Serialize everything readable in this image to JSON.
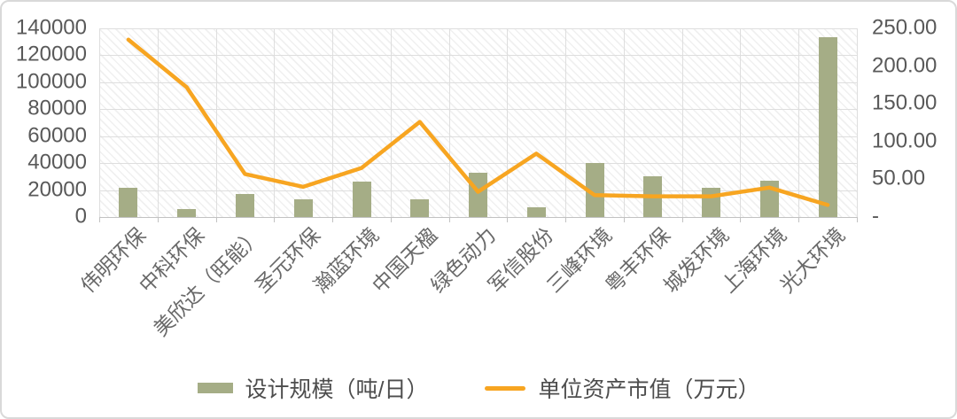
{
  "colors": {
    "bar": "#a5ad86",
    "line": "#f7a521",
    "axis_text": "#595959",
    "category_text": "#696969",
    "gridline": "#dedede",
    "frame_border": "#d9d9d9"
  },
  "chart_data": {
    "type": "bar+line combo",
    "title": "",
    "categories": [
      "伟明环保",
      "中科环保",
      "美欣达（旺能）",
      "圣元环保",
      "瀚蓝环境",
      "中国天楹",
      "绿色动力",
      "军信股份",
      "三峰环境",
      "粤丰环保",
      "城发环境",
      "上海环境",
      "光大环境"
    ],
    "series": [
      {
        "name": "设计规模（吨/日）",
        "type": "bar",
        "axis": "left",
        "color": "#a5ad86",
        "values": [
          21800,
          5800,
          17200,
          13500,
          26000,
          13300,
          32700,
          7000,
          40000,
          30400,
          21700,
          27300,
          133300
        ]
      },
      {
        "name": "单位资产市值（万元）",
        "type": "line",
        "axis": "right",
        "color": "#f7a521",
        "values": [
          235,
          172,
          57,
          40,
          65,
          126,
          33.5,
          84,
          29,
          27.5,
          27.5,
          39,
          16
        ]
      }
    ],
    "left_axis": {
      "min": 0,
      "max": 140000,
      "step": 20000,
      "ticks_top_to_bottom": [
        "140000",
        "120000",
        "100000",
        "80000",
        "60000",
        "40000",
        "20000",
        "0"
      ]
    },
    "right_axis": {
      "min": 0,
      "max": 250,
      "step": 50,
      "ticks_top_to_bottom": [
        "250.00",
        "200.00",
        "150.00",
        "100.00",
        "50.00",
        "-"
      ]
    },
    "grid": true,
    "plot_background": "light diagonal hatch pattern",
    "legend_position": "bottom"
  }
}
